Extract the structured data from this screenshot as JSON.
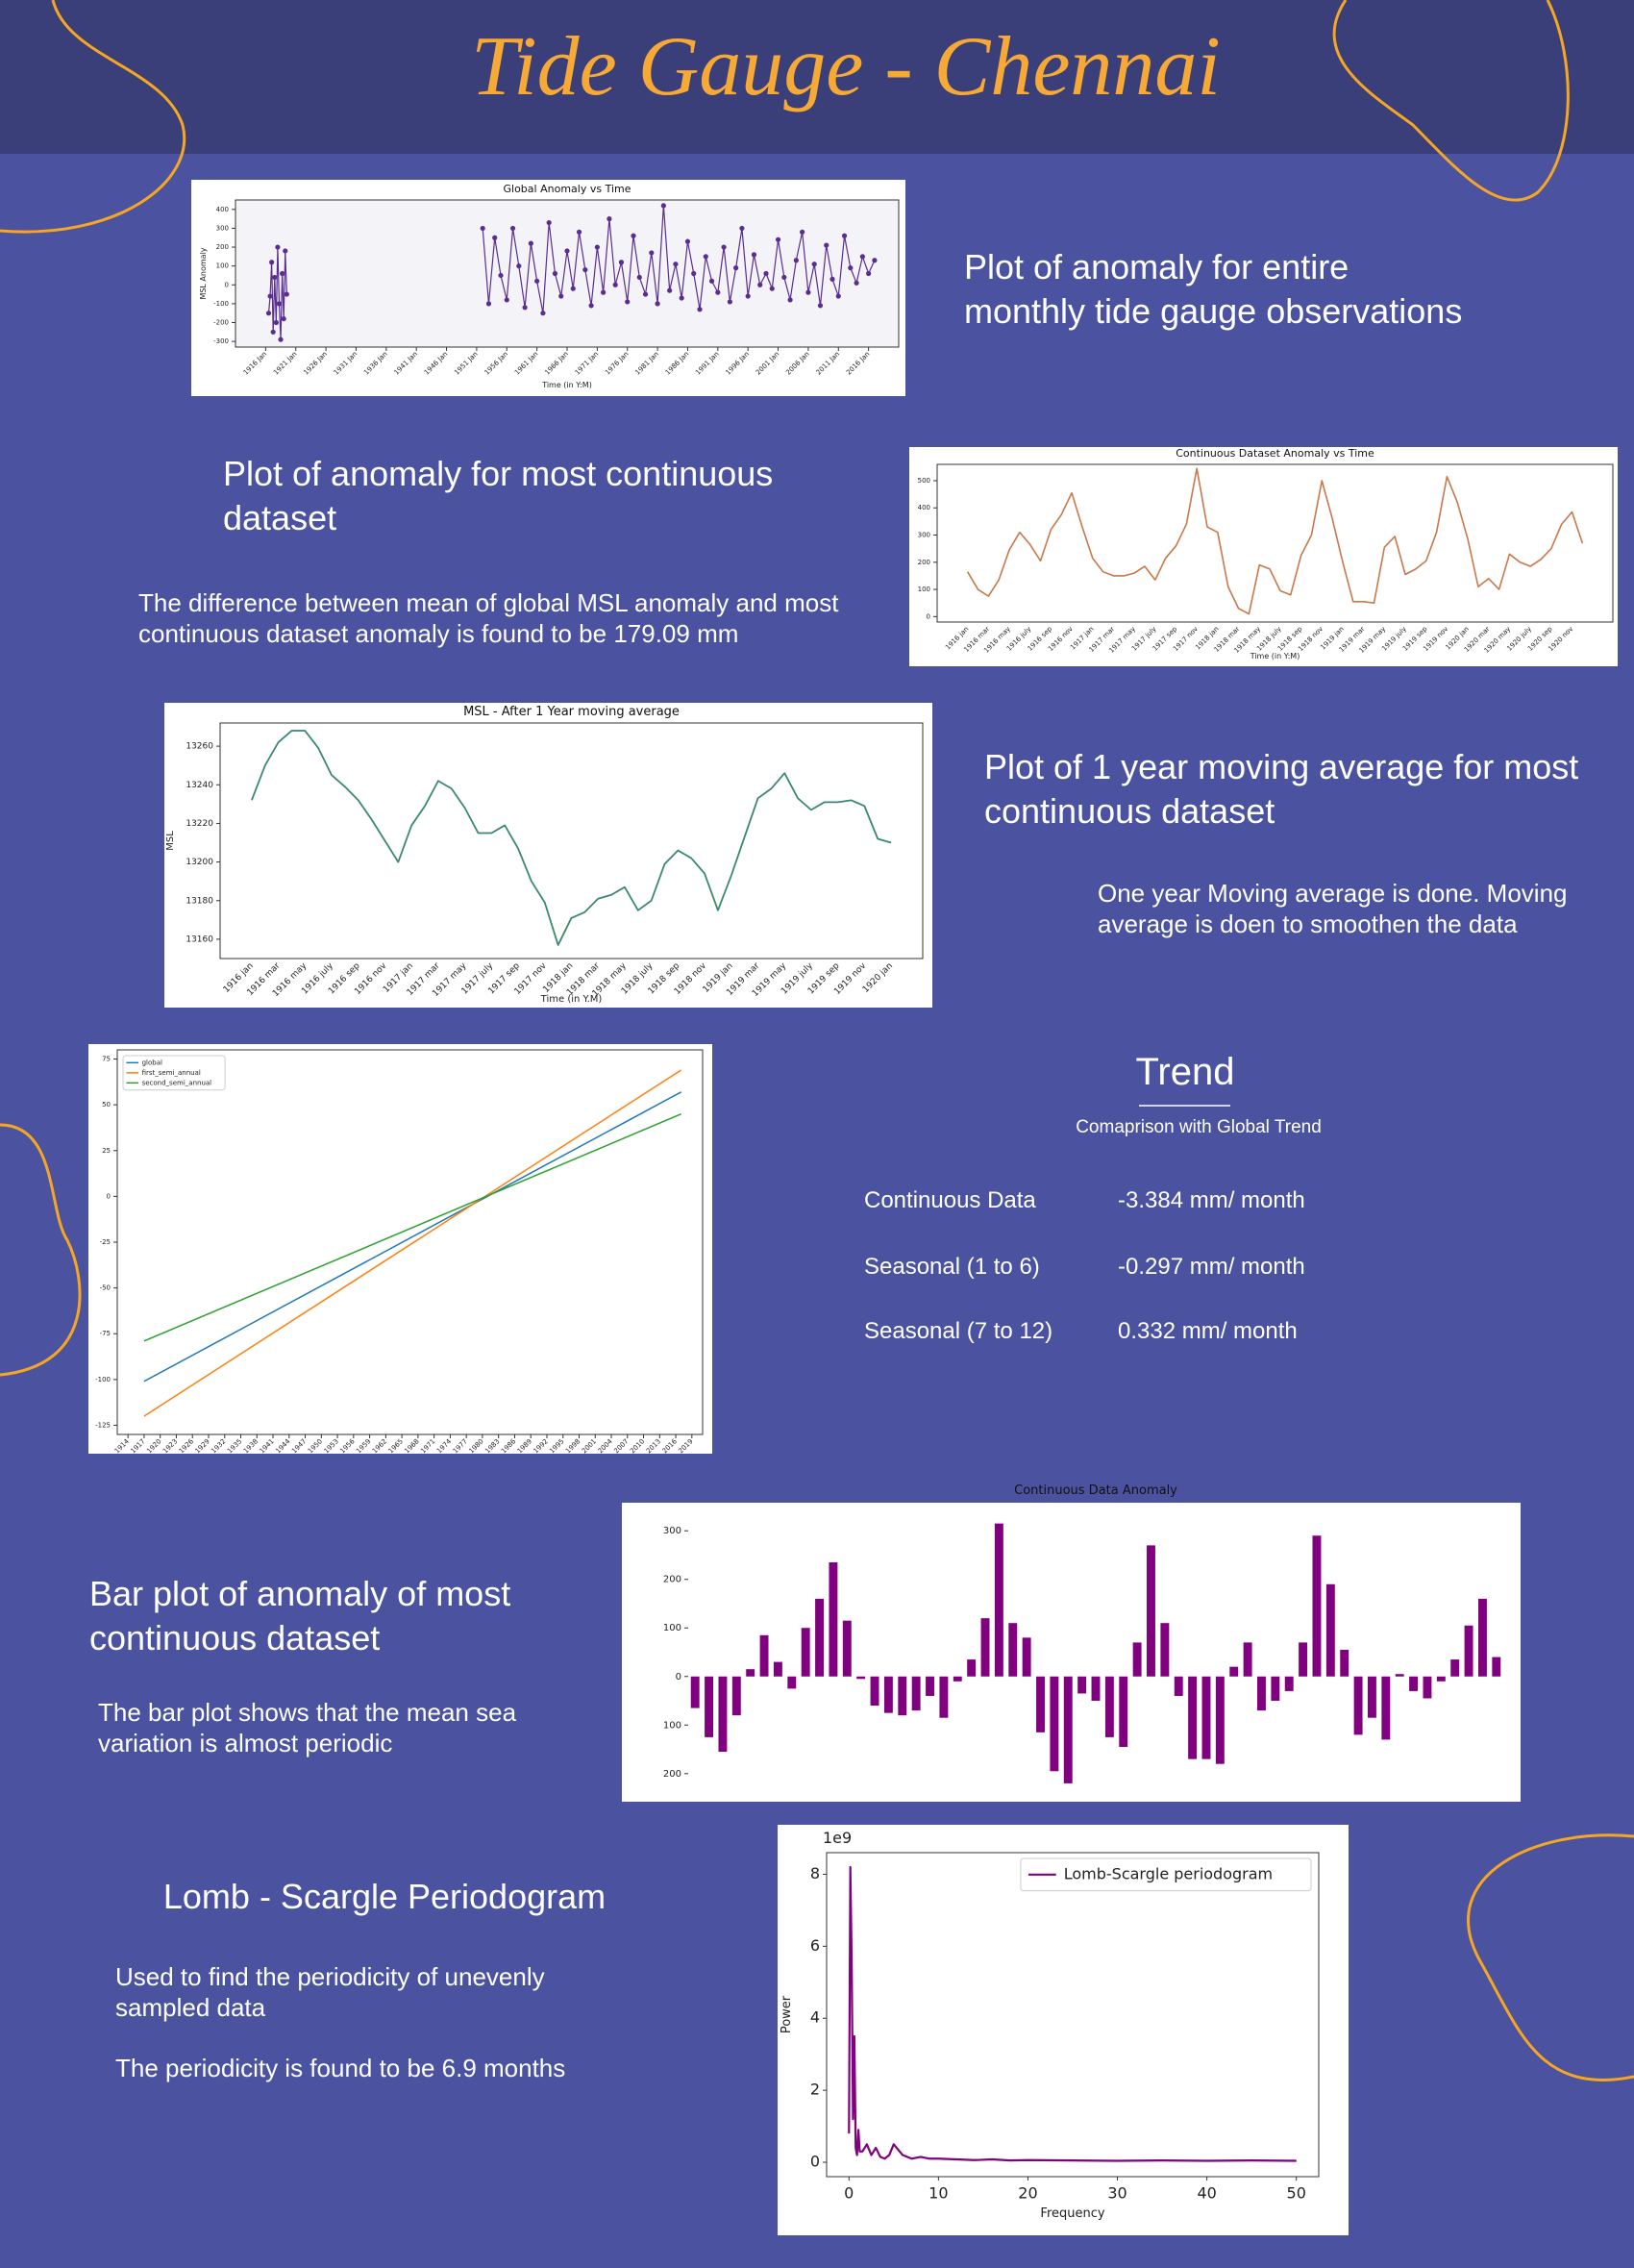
{
  "header": {
    "title": "Tide Gauge - Chennai"
  },
  "sections": [
    {
      "heading": [
        "Plot of anomaly for entire",
        "monthly tide gauge observations"
      ]
    },
    {
      "heading": [
        "Plot of anomaly for most continuous",
        "dataset"
      ],
      "text": [
        "The difference between mean of global MSL anomaly and most",
        "continuous dataset anomaly is found to be 179.09 mm"
      ]
    },
    {
      "heading": [
        "Plot of 1 year moving average for most",
        "continuous dataset"
      ],
      "text": [
        "One year Moving average is done. Moving",
        "average is doen to smoothen the data"
      ]
    },
    {
      "heading": [
        "Bar plot of anomaly of most",
        "continuous dataset"
      ],
      "text": [
        "The bar plot shows that the mean sea",
        "variation is almost periodic"
      ]
    },
    {
      "heading": [
        "Lomb - Scargle Periodogram"
      ],
      "text": [
        "Used to find the periodicity of unevenly",
        "sampled data"
      ],
      "note": [
        "The periodicity is found to be 6.9 months"
      ]
    }
  ],
  "trend": {
    "title": "Trend",
    "subtitle": "Comaprison with Global Trend",
    "rows": [
      [
        "Continuous Data",
        "-3.384 mm/ month"
      ],
      [
        "Seasonal (1 to 6)",
        "-0.297 mm/ month"
      ],
      [
        "Seasonal (7 to 12)",
        "0.332 mm/ month"
      ]
    ]
  },
  "chart_data": [
    {
      "type": "line",
      "markers": true,
      "title": "Global Anomaly vs Time",
      "xlabel": "Time (in Y:M)",
      "ylabel": "MSL Anomaly",
      "color": "#5a2d91",
      "x": [
        1916.5,
        1916.75,
        1917,
        1917.25,
        1917.5,
        1917.75,
        1918,
        1918.25,
        1918.5,
        1918.75,
        1919,
        1919.25,
        1919.5,
        1935,
        1952,
        1953,
        1954,
        1955,
        1956,
        1957,
        1958,
        1959,
        1960,
        1961,
        1962,
        1963,
        1964,
        1965,
        1966,
        1967,
        1968,
        1969,
        1970,
        1971,
        1972,
        1973,
        1974,
        1975,
        1976,
        1977,
        1978,
        1979,
        1980,
        1981,
        1982,
        1983,
        1984,
        1985,
        1986,
        1987,
        1988,
        1989,
        1990,
        1991,
        1992,
        1993,
        1994,
        1995,
        1996,
        1997,
        1998,
        1999,
        2000,
        2001,
        2002,
        2003,
        2004,
        2005,
        2006,
        2007,
        2008,
        2009,
        2010,
        2011,
        2012,
        2013,
        2014,
        2015,
        2016,
        2017
      ],
      "values": [
        -150,
        -60,
        120,
        -250,
        40,
        -200,
        200,
        -100,
        -290,
        60,
        -180,
        180,
        -50,
        null,
        300,
        -100,
        250,
        50,
        -80,
        300,
        100,
        -120,
        220,
        20,
        -150,
        330,
        60,
        -60,
        180,
        -20,
        280,
        80,
        -110,
        200,
        -40,
        350,
        0,
        120,
        -90,
        260,
        40,
        -50,
        170,
        -100,
        420,
        -30,
        110,
        -70,
        230,
        60,
        -130,
        150,
        20,
        -40,
        200,
        -90,
        90,
        300,
        -60,
        160,
        0,
        60,
        -20,
        240,
        40,
        -80,
        130,
        280,
        -40,
        110,
        -110,
        210,
        30,
        -60,
        260,
        90,
        10,
        150,
        60,
        130
      ],
      "xlim": [
        1911,
        2021
      ],
      "xticks": [
        {
          "value": 1916,
          "label": "1916 Jan"
        },
        {
          "value": 1921,
          "label": "1921 Jan"
        },
        {
          "value": 1926,
          "label": "1926 Jan"
        },
        {
          "value": 1931,
          "label": "1931 Jan"
        },
        {
          "value": 1936,
          "label": "1936 Jan"
        },
        {
          "value": 1941,
          "label": "1941 Jan"
        },
        {
          "value": 1946,
          "label": "1946 Jan"
        },
        {
          "value": 1951,
          "label": "1951 Jan"
        },
        {
          "value": 1956,
          "label": "1956 Jan"
        },
        {
          "value": 1961,
          "label": "1961 Jan"
        },
        {
          "value": 1966,
          "label": "1966 Jan"
        },
        {
          "value": 1971,
          "label": "1971 Jan"
        },
        {
          "value": 1976,
          "label": "1976 Jan"
        },
        {
          "value": 1981,
          "label": "1981 Jan"
        },
        {
          "value": 1986,
          "label": "1986 Jan"
        },
        {
          "value": 1991,
          "label": "1991 Jan"
        },
        {
          "value": 1996,
          "label": "1996 Jan"
        },
        {
          "value": 2001,
          "label": "2001 Jan"
        },
        {
          "value": 2006,
          "label": "2006 Jan"
        },
        {
          "value": 2011,
          "label": "2011 Jan"
        },
        {
          "value": 2016,
          "label": "2016 Jan"
        }
      ],
      "ylim": [
        -330,
        450
      ],
      "yticks": [
        -300,
        -200,
        -100,
        0,
        100,
        200,
        300,
        400
      ]
    },
    {
      "type": "line",
      "title": "Continuous Dataset Anomaly vs Time",
      "xlabel": "Time (in Y:M)",
      "color": "#c8784a",
      "categories": [
        "1916 jan",
        null,
        "1916 mar",
        null,
        "1916 may",
        null,
        "1916 july",
        null,
        "1916 sep",
        null,
        "1916 nov",
        null,
        "1917 jan",
        null,
        "1917 mar",
        null,
        "1917 may",
        null,
        "1917 july",
        null,
        "1917 sep",
        null,
        "1917 nov",
        null,
        "1918 jan",
        null,
        "1918 mar",
        null,
        "1918 may",
        null,
        "1918 july",
        null,
        "1918 sep",
        null,
        "1918 nov",
        null,
        "1919 jan",
        null,
        "1919 mar",
        null,
        "1919 may",
        null,
        "1919 july",
        null,
        "1919 sep",
        null,
        "1919 nov",
        null,
        "1920 jan",
        null,
        "1920 mar",
        null,
        "1920 may",
        null,
        "1920 july",
        null,
        "1920 sep",
        null,
        "1920 nov",
        null
      ],
      "values": [
        165,
        100,
        75,
        135,
        245,
        310,
        265,
        205,
        320,
        375,
        455,
        330,
        215,
        165,
        150,
        150,
        160,
        185,
        135,
        215,
        260,
        340,
        545,
        330,
        310,
        110,
        30,
        10,
        190,
        175,
        95,
        80,
        225,
        300,
        500,
        360,
        200,
        55,
        55,
        50,
        255,
        295,
        155,
        175,
        205,
        310,
        515,
        420,
        285,
        110,
        140,
        100,
        230,
        200,
        185,
        210,
        250,
        340,
        385,
        270
      ],
      "ylim": [
        -20,
        560
      ],
      "yticks": [
        0,
        100,
        200,
        300,
        400,
        500
      ]
    },
    {
      "type": "line",
      "title": "MSL - After 1 Year moving average",
      "xlabel": "Time (in Y.M)",
      "ylabel": "MSL",
      "color": "#3a8a6a",
      "categories": [
        "1916 jan",
        null,
        "1916 mar",
        null,
        "1916 may",
        null,
        "1916 july",
        null,
        "1916 sep",
        null,
        "1916 nov",
        null,
        "1917 jan",
        null,
        "1917 mar",
        null,
        "1917 may",
        null,
        "1917 july",
        null,
        "1917 sep",
        null,
        "1917 nov",
        null,
        "1918 jan",
        null,
        "1918 mar",
        null,
        "1918 may",
        null,
        "1918 july",
        null,
        "1918 sep",
        null,
        "1918 nov",
        null,
        "1919 jan",
        null,
        "1919 mar",
        null,
        "1919 may",
        null,
        "1919 july",
        null,
        "1919 sep",
        null,
        "1919 nov",
        null,
        "1920 jan"
      ],
      "values": [
        13232,
        13250,
        13262,
        13268,
        13268,
        13259,
        13245,
        13239,
        13232,
        13222,
        13211,
        13200,
        13219,
        13229,
        13242,
        13238,
        13228,
        13215,
        13215,
        13219,
        13207,
        13190,
        13179,
        13157,
        13171,
        13174,
        13181,
        13183,
        13187,
        13175,
        13180,
        13199,
        13206,
        13202,
        13194,
        13175,
        13193,
        13213,
        13233,
        13238,
        13246,
        13233,
        13227,
        13231,
        13231,
        13232,
        13229,
        13212,
        13210
      ],
      "ylim": [
        13150,
        13272
      ],
      "yticks": [
        13160,
        13180,
        13200,
        13220,
        13240,
        13260
      ]
    },
    {
      "type": "line",
      "legend": "upper left",
      "x": [
        1917,
        2017
      ],
      "series": [
        {
          "name": "global",
          "color": "#1f77b4",
          "values": [
            -101,
            57
          ]
        },
        {
          "name": "first_semi_annual",
          "color": "#ff7f0e",
          "values": [
            -120,
            69
          ]
        },
        {
          "name": "second_semi_annual",
          "color": "#2ca02c",
          "values": [
            -79,
            45
          ]
        }
      ],
      "xlim": [
        1912,
        2021
      ],
      "xticks": [
        1914,
        1917,
        1920,
        1923,
        1926,
        1929,
        1932,
        1935,
        1938,
        1941,
        1944,
        1947,
        1950,
        1953,
        1956,
        1959,
        1962,
        1965,
        1968,
        1971,
        1974,
        1977,
        1980,
        1983,
        1986,
        1989,
        1992,
        1995,
        1998,
        2001,
        2004,
        2007,
        2010,
        2013,
        2016,
        2019
      ],
      "ylim": [
        -130,
        80
      ],
      "yticks": [
        -125,
        -100,
        -75,
        -50,
        -25,
        0,
        25,
        50,
        75
      ]
    },
    {
      "type": "bar",
      "title": "Continuous Data Anomaly",
      "color": "#800080",
      "values": [
        -65,
        -125,
        -155,
        -80,
        15,
        85,
        30,
        -25,
        100,
        160,
        235,
        115,
        -5,
        -60,
        -75,
        -80,
        -70,
        -40,
        -85,
        -10,
        35,
        120,
        315,
        110,
        80,
        -115,
        -195,
        -220,
        -35,
        -50,
        -125,
        -145,
        70,
        270,
        110,
        -40,
        -170,
        -170,
        -180,
        20,
        70,
        -70,
        -50,
        -30,
        70,
        290,
        190,
        55,
        -120,
        -85,
        -130,
        5,
        -30,
        -45,
        -10,
        35,
        105,
        160,
        40
      ],
      "ylim": [
        -240,
        340
      ],
      "yticks": [
        {
          "value": -200,
          "label": "200"
        },
        {
          "value": -100,
          "label": "100"
        },
        0,
        100,
        200,
        300
      ]
    },
    {
      "type": "line",
      "legend": "upper right",
      "xlabel": "Frequency",
      "ylabel": "Power",
      "offset_text": "1e9",
      "x": [
        0,
        0.15,
        0.3,
        0.45,
        0.6,
        0.75,
        0.9,
        1.05,
        1.2,
        1.5,
        2,
        2.5,
        3,
        3.5,
        4,
        4.5,
        5,
        6,
        7,
        8,
        9,
        10,
        12,
        14,
        16,
        18,
        20,
        25,
        30,
        35,
        40,
        45,
        50
      ],
      "series": [
        {
          "name": "Lomb-Scargle periodogram",
          "color": "#800080",
          "values": [
            0.8,
            8.2,
            5.6,
            1.2,
            3.5,
            0.4,
            0.2,
            0.9,
            0.3,
            0.3,
            0.5,
            0.2,
            0.4,
            0.15,
            0.1,
            0.2,
            0.5,
            0.2,
            0.1,
            0.15,
            0.1,
            0.1,
            0.08,
            0.06,
            0.08,
            0.05,
            0.06,
            0.05,
            0.04,
            0.05,
            0.04,
            0.05,
            0.04
          ]
        }
      ],
      "xlim": [
        -2.5,
        52.5
      ],
      "xticks": [
        0,
        10,
        20,
        30,
        40,
        50
      ],
      "ylim": [
        -0.4,
        8.6
      ],
      "yticks": [
        0,
        2,
        4,
        6,
        8
      ]
    }
  ]
}
